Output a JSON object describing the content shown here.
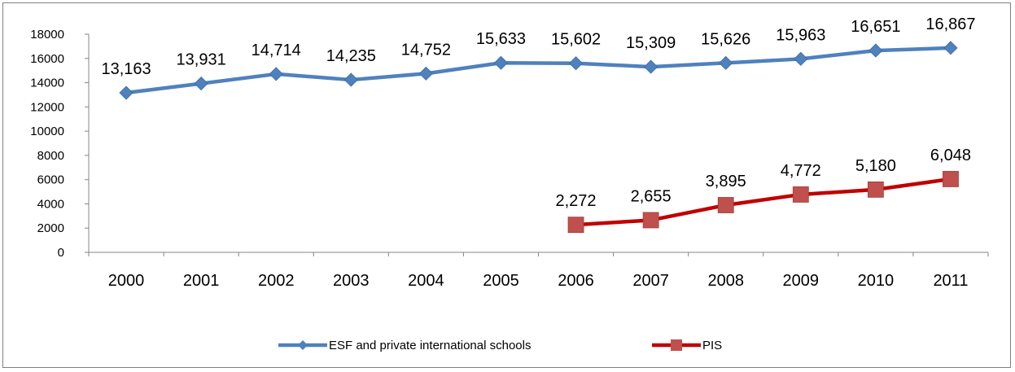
{
  "chart_data": {
    "type": "line",
    "categories": [
      "2000",
      "2001",
      "2002",
      "2003",
      "2004",
      "2005",
      "2006",
      "2007",
      "2008",
      "2009",
      "2010",
      "2011"
    ],
    "ylim": [
      0,
      18000
    ],
    "yticks": [
      "0",
      "2000",
      "4000",
      "6000",
      "8000",
      "10000",
      "12000",
      "14000",
      "16000",
      "18000"
    ],
    "grid": false,
    "legend_position": "bottom",
    "series": [
      {
        "name": "ESF and private international schools",
        "color": "#4f81bd",
        "marker": "diamond",
        "values": [
          13163,
          13931,
          14714,
          14235,
          14752,
          15633,
          15602,
          15309,
          15626,
          15963,
          16651,
          16867
        ],
        "labels": [
          "13,163",
          "13,931",
          "14,714",
          "14,235",
          "14,752",
          "15,633",
          "15,602",
          "15,309",
          "15,626",
          "15,963",
          "16,651",
          "16,867"
        ]
      },
      {
        "name": "PIS",
        "color": "#c00000",
        "marker_color": "#c0504d",
        "marker": "square",
        "values": [
          null,
          null,
          null,
          null,
          null,
          null,
          2272,
          2655,
          3895,
          4772,
          5180,
          6048
        ],
        "labels": [
          null,
          null,
          null,
          null,
          null,
          null,
          "2,272",
          "2,655",
          "3,895",
          "4,772",
          "5,180",
          "6,048"
        ]
      }
    ]
  }
}
